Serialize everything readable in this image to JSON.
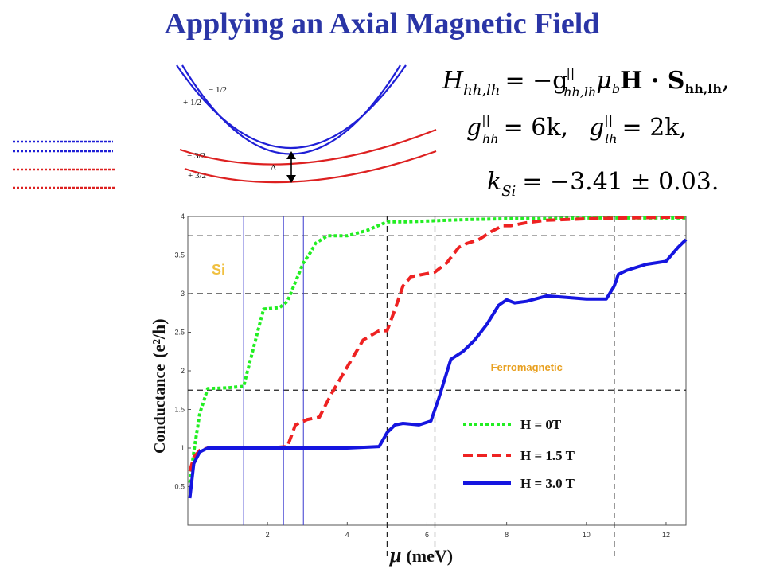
{
  "slide": {
    "title": "Applying an Axial Magnetic Field",
    "colors": {
      "title": "#2a35a6",
      "hh": "#1f1fd6",
      "lh": "#dd2020"
    }
  },
  "bands_diagram": {
    "labels": [
      "− 1/2",
      "+ 1/2",
      "− 3/2",
      "+ 3/2"
    ],
    "gap_label": "Δ"
  },
  "equations": {
    "eq1_lhs": "H",
    "eq1_lhs_sub": "hh,lh",
    "eq1_rhs": "= −g",
    "eq1_rhs_sup": "||",
    "eq1_rhs_sub": "hh,lh",
    "eq1_mu": "μ",
    "eq1_mu_sub": "b",
    "eq1_tail": "H · S",
    "eq1_tail_sub": "hh,lh",
    "eq1_end": ",",
    "eq2_a": "g",
    "eq2_a_sup": "||",
    "eq2_a_sub": "hh",
    "eq2_a_val": "= 6k,",
    "eq2_b": "g",
    "eq2_b_sup": "||",
    "eq2_b_sub": "lh",
    "eq2_b_val": "= 2k,",
    "eq3_k": "k",
    "eq3_k_sub": "Si",
    "eq3_val": "= −3.41 ± 0.03."
  },
  "chart_data": {
    "type": "line",
    "xlabel_mu": "μ",
    "xlabel_unit": "(meV)",
    "ylabel": "Conductance",
    "ylabel_unit": "(e²/h)",
    "xlim": [
      0,
      12.5
    ],
    "ylim": [
      0,
      4
    ],
    "x_ticks": [
      "2",
      "4",
      "6",
      "8",
      "10",
      "12"
    ],
    "x_tick_values": [
      2,
      4,
      6,
      8,
      10,
      12
    ],
    "y_ticks": [
      "0.5",
      "1",
      "1.5",
      "2",
      "2.5",
      "3",
      "3.5",
      "4"
    ],
    "y_tick_values": [
      0.5,
      1,
      1.5,
      2,
      2.5,
      3,
      3.5,
      4
    ],
    "annotations": [
      {
        "text": "Si",
        "color": "#f0c040",
        "x": 0.6,
        "y": 3.25
      },
      {
        "text": "Ferromagnetic",
        "color": "#e8a020",
        "x": 7.6,
        "y": 2.0
      }
    ],
    "reference_lines": {
      "horizontal_dashed": [
        1.75,
        3.0,
        3.75
      ],
      "vertical_dashed": [
        5.0,
        6.2,
        10.7
      ],
      "vertical_solid_blue": [
        1.4,
        2.4,
        2.9
      ]
    },
    "series": [
      {
        "name": "H = 0T",
        "color": "#22ee22",
        "style": "dotted",
        "x": [
          0.05,
          0.15,
          0.3,
          0.5,
          1.0,
          1.4,
          1.6,
          1.8,
          1.9,
          2.3,
          2.5,
          2.7,
          2.9,
          3.1,
          3.2,
          3.5,
          4.0,
          4.5,
          5.0,
          5.5,
          6.0,
          7.0,
          8.0,
          9.0,
          10.0,
          11.0,
          12.0,
          12.5
        ],
        "y": [
          0.55,
          0.95,
          1.45,
          1.77,
          1.78,
          1.8,
          2.2,
          2.6,
          2.8,
          2.82,
          2.9,
          3.15,
          3.4,
          3.55,
          3.65,
          3.75,
          3.75,
          3.82,
          3.93,
          3.93,
          3.94,
          3.96,
          3.97,
          3.97,
          3.98,
          3.98,
          3.98,
          3.98
        ]
      },
      {
        "name": "H = 1.5 T",
        "color": "#ee2222",
        "style": "dashed",
        "x": [
          0.05,
          0.15,
          0.3,
          0.5,
          1.0,
          2.0,
          2.5,
          2.7,
          3.0,
          3.3,
          3.6,
          4.0,
          4.4,
          4.8,
          5.0,
          5.2,
          5.4,
          5.6,
          5.9,
          6.2,
          6.5,
          6.8,
          7.0,
          7.3,
          7.6,
          7.9,
          8.1,
          8.5,
          9.0,
          10.0,
          11.0,
          12.0,
          12.5
        ],
        "y": [
          0.7,
          0.88,
          0.97,
          1.0,
          1.0,
          1.0,
          1.02,
          1.3,
          1.37,
          1.4,
          1.7,
          2.05,
          2.4,
          2.52,
          2.52,
          2.8,
          3.1,
          3.22,
          3.25,
          3.28,
          3.4,
          3.6,
          3.65,
          3.7,
          3.8,
          3.88,
          3.88,
          3.92,
          3.95,
          3.97,
          3.98,
          3.99,
          3.99
        ]
      },
      {
        "name": "H = 3.0 T",
        "color": "#1515e0",
        "style": "solid",
        "x": [
          0.05,
          0.15,
          0.3,
          0.5,
          1.0,
          2.0,
          3.0,
          4.0,
          4.8,
          5.0,
          5.2,
          5.4,
          5.8,
          6.1,
          6.3,
          6.6,
          6.9,
          7.2,
          7.5,
          7.8,
          8.0,
          8.2,
          8.5,
          9.0,
          9.5,
          10.0,
          10.5,
          10.7,
          10.8,
          11.0,
          11.5,
          12.0,
          12.3,
          12.5
        ],
        "y": [
          0.35,
          0.8,
          0.95,
          1.0,
          1.0,
          1.0,
          1.0,
          1.0,
          1.02,
          1.2,
          1.3,
          1.32,
          1.3,
          1.35,
          1.65,
          2.15,
          2.25,
          2.4,
          2.6,
          2.85,
          2.92,
          2.88,
          2.9,
          2.97,
          2.95,
          2.93,
          2.93,
          3.1,
          3.25,
          3.3,
          3.38,
          3.42,
          3.6,
          3.7
        ]
      }
    ]
  }
}
